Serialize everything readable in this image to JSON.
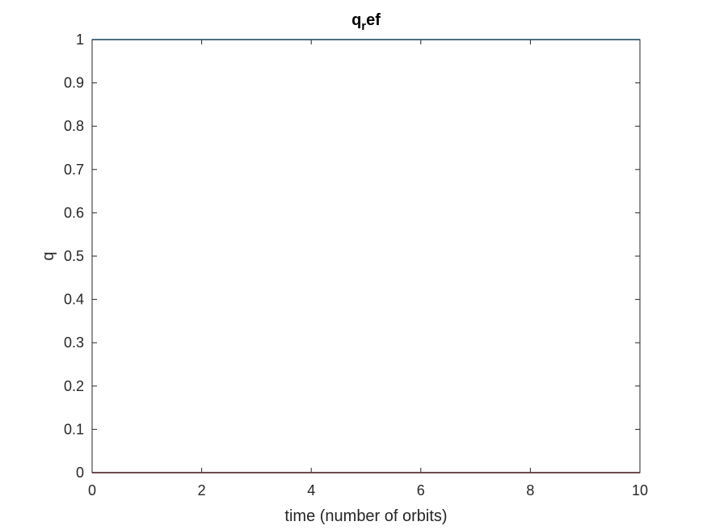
{
  "chart_data": {
    "type": "line",
    "title": "q",
    "title_subscript": "r",
    "title_suffix": "ef",
    "xlabel": "time (number of orbits)",
    "ylabel": "q",
    "xlim": [
      0,
      10
    ],
    "ylim": [
      0,
      1
    ],
    "xticks": [
      0,
      2,
      4,
      6,
      8,
      10
    ],
    "yticks": [
      0,
      0.1,
      0.2,
      0.3,
      0.4,
      0.5,
      0.6,
      0.7,
      0.8,
      0.9,
      1
    ],
    "grid": false,
    "series": [
      {
        "color": "#0072BD",
        "x": [
          0,
          10
        ],
        "y": [
          1,
          1
        ]
      },
      {
        "color": "#D95319",
        "x": [
          0,
          10
        ],
        "y": [
          0,
          0
        ]
      },
      {
        "color": "#EDB120",
        "x": [
          0,
          10
        ],
        "y": [
          0,
          0
        ]
      },
      {
        "color": "#7E2F8E",
        "x": [
          0,
          10
        ],
        "y": [
          0,
          0
        ]
      }
    ]
  }
}
